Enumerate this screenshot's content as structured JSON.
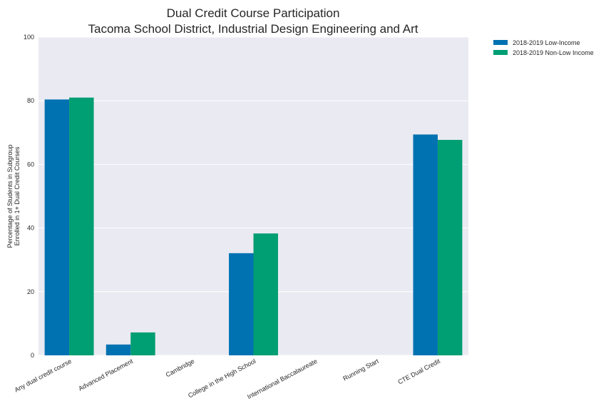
{
  "chart_data": {
    "type": "bar",
    "title": "Dual Credit Course Participation",
    "subtitle": "Tacoma School District, Industrial Design Engineering and Art",
    "xlabel": "",
    "ylabel": [
      "Percentage of Students in Subgroup",
      "Enrolled in 1+ Dual Credit Courses"
    ],
    "ylim": [
      0,
      100
    ],
    "yticks": [
      "0",
      "20",
      "40",
      "60",
      "80",
      "100"
    ],
    "grid": true,
    "legend_position": "top-right outside",
    "categories": [
      "Any dual credit course",
      "Advanced Placement",
      "Cambridge",
      "College in the High School",
      "International Baccalaureate",
      "Running Start",
      "CTE Dual Credit"
    ],
    "series": [
      {
        "name": "2018-2019 Low-Income",
        "color": "#0072b2",
        "values": [
          80.4,
          3.4,
          0,
          32.1,
          0,
          0,
          69.4
        ]
      },
      {
        "name": "2018-2019 Non-Low Income",
        "color": "#009e73",
        "values": [
          81.0,
          7.2,
          0,
          38.3,
          0,
          0,
          67.7
        ]
      }
    ]
  }
}
